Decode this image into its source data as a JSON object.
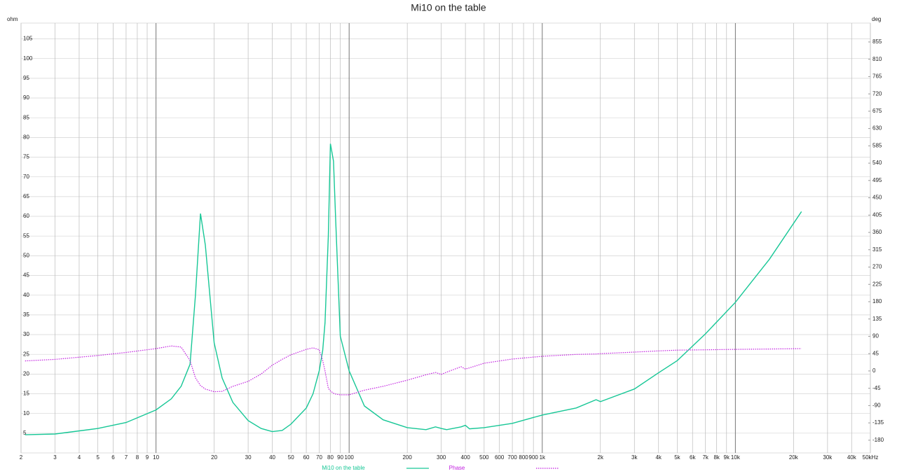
{
  "chart_data": {
    "type": "line",
    "title": "Mi10 on the table",
    "ylabel": "ohm",
    "y2label": "deg",
    "xscale": "log",
    "grid": true,
    "xlim": [
      2,
      50000
    ],
    "ylim": [
      0,
      109
    ],
    "y2lim": [
      -213,
      904
    ],
    "xticks": [
      2,
      3,
      4,
      5,
      6,
      7,
      8,
      9,
      10,
      20,
      30,
      40,
      50,
      60,
      70,
      80,
      90,
      100,
      200,
      300,
      400,
      500,
      600,
      700,
      800,
      900,
      {
        "value": 1000,
        "label": "1k"
      },
      {
        "value": 2000,
        "label": "2k"
      },
      {
        "value": 3000,
        "label": "3k"
      },
      {
        "value": 4000,
        "label": "4k"
      },
      {
        "value": 5000,
        "label": "5k"
      },
      {
        "value": 6000,
        "label": "6k"
      },
      {
        "value": 7000,
        "label": "7k"
      },
      {
        "value": 8000,
        "label": "8k"
      },
      {
        "value": 9000,
        "label": "9k"
      },
      {
        "value": 10000,
        "label": "10k"
      },
      {
        "value": 20000,
        "label": "20k"
      },
      {
        "value": 30000,
        "label": "30k"
      },
      {
        "value": 40000,
        "label": "40k"
      },
      {
        "value": 50000,
        "label": "50kHz"
      }
    ],
    "yticks": [
      5,
      10,
      15,
      20,
      25,
      30,
      35,
      40,
      45,
      50,
      55,
      60,
      65,
      70,
      75,
      80,
      85,
      90,
      95,
      100,
      105
    ],
    "y2ticks": [
      -180,
      -135,
      -90,
      -45,
      0,
      45,
      90,
      135,
      180,
      225,
      270,
      315,
      360,
      405,
      450,
      495,
      540,
      585,
      630,
      675,
      720,
      765,
      810,
      855
    ],
    "x": [
      2.1,
      3,
      5,
      7,
      10,
      12,
      13.5,
      15,
      16,
      17,
      18,
      20,
      22,
      25,
      30,
      35,
      40,
      45,
      50,
      60,
      65,
      70,
      73,
      75,
      78,
      80,
      83,
      85,
      90,
      100,
      120,
      150,
      200,
      250,
      280,
      300,
      320,
      380,
      400,
      420,
      500,
      700,
      1000,
      1500,
      1900,
      2000,
      3000,
      4000,
      5000,
      7000,
      10000,
      15000,
      22000
    ],
    "series": [
      {
        "name": "Mi10 on the table",
        "color": "#17c796",
        "style": "solid",
        "values": [
          4.6,
          4.8,
          6.2,
          7.7,
          10.9,
          13.7,
          16.9,
          22.5,
          40,
          60.7,
          52.7,
          27.9,
          19,
          12.8,
          8.2,
          6.2,
          5.4,
          5.7,
          7.3,
          11.4,
          15,
          20.8,
          26,
          33,
          55,
          78.4,
          74,
          60,
          29.6,
          20.8,
          11.9,
          8.4,
          6.4,
          5.9,
          6.6,
          6.2,
          5.9,
          6.6,
          7,
          6.1,
          6.4,
          7.5,
          9.6,
          11.4,
          13.5,
          13,
          16.2,
          20.3,
          23.4,
          30.2,
          38.2,
          49.1,
          61.2
        ]
      },
      {
        "name": "Phase",
        "color": "#c21fe0",
        "style": "dotted",
        "axis": "y2",
        "values": [
          26,
          30,
          40,
          48,
          58,
          65,
          62,
          27,
          -18,
          -38,
          -47,
          -54,
          -53,
          -40,
          -27,
          -8,
          15,
          30,
          42,
          56,
          60,
          55,
          27,
          0,
          -45,
          -52,
          -58,
          -60,
          -62,
          -62,
          -50,
          -40,
          -24,
          -10,
          -4,
          -9,
          -3,
          11,
          5,
          8,
          20,
          31,
          38,
          43,
          44,
          45,
          49,
          52,
          54,
          55,
          56,
          57,
          58
        ]
      }
    ]
  }
}
